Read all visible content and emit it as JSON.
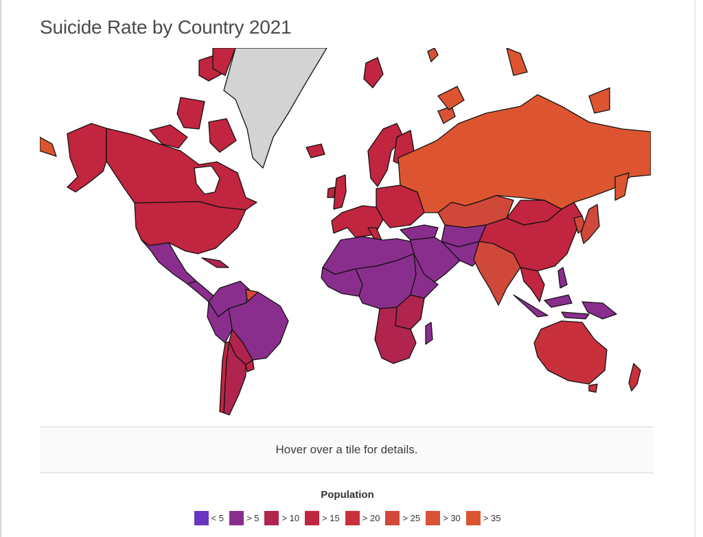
{
  "title": "Suicide Rate by Country 2021",
  "info_text": "Hover over a tile for details.",
  "legend": {
    "title": "Population",
    "items": [
      {
        "label": "< 5",
        "color": "#6a35c2"
      },
      {
        "label": "> 5",
        "color": "#8a2e8e"
      },
      {
        "label": "> 10",
        "color": "#b0244e"
      },
      {
        "label": "> 15",
        "color": "#c1253f"
      },
      {
        "label": "> 20",
        "color": "#c8303c"
      },
      {
        "label": "> 25",
        "color": "#d0483a"
      },
      {
        "label": "> 30",
        "color": "#d85236"
      },
      {
        "label": "> 35",
        "color": "#dd5530"
      }
    ]
  },
  "colors": {
    "no_data": "#d3d3d3",
    "border": "#111111"
  }
}
